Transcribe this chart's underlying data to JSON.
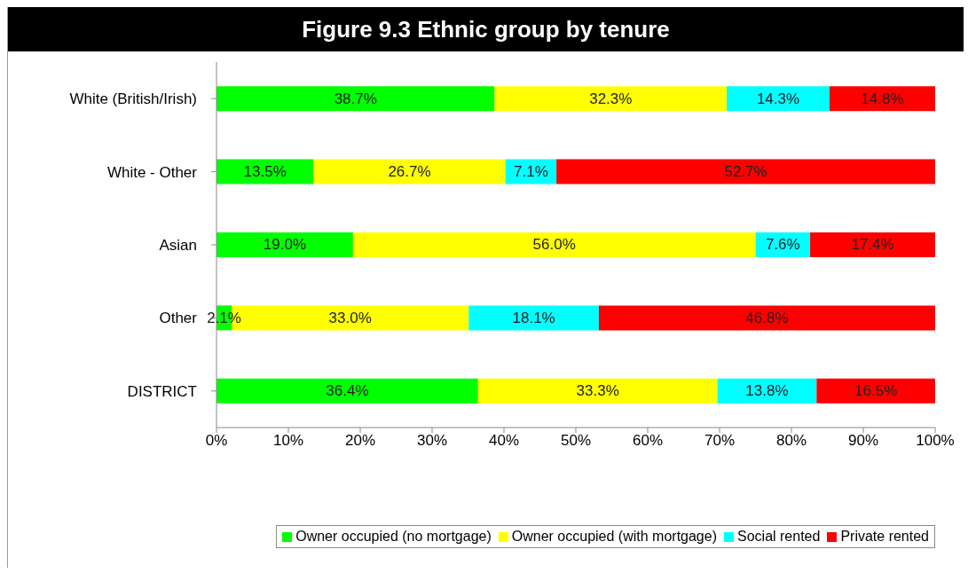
{
  "chart_data": {
    "type": "bar",
    "orientation": "horizontal",
    "stacked": true,
    "title": "Figure 9.3 Ethnic group by tenure",
    "categories": [
      "White (British/Irish)",
      "White - Other",
      "Asian",
      "Other",
      "DISTRICT"
    ],
    "series": [
      {
        "name": "Owner occupied (no mortgage)",
        "color": "#00ff00",
        "values": [
          38.7,
          13.5,
          19.0,
          2.1,
          36.4
        ],
        "value_labels": [
          "38.7%",
          "13.5%",
          "19.0%",
          "2.1%",
          "36.4%"
        ]
      },
      {
        "name": "Owner occupied (with mortgage)",
        "color": "#ffff00",
        "values": [
          32.3,
          26.7,
          56.0,
          33.0,
          33.3
        ],
        "value_labels": [
          "32.3%",
          "26.7%",
          "56.0%",
          "33.0%",
          "33.3%"
        ]
      },
      {
        "name": "Social rented",
        "color": "#00ffff",
        "values": [
          14.3,
          7.1,
          7.6,
          18.1,
          13.8
        ],
        "value_labels": [
          "14.3%",
          "7.1%",
          "7.6%",
          "18.1%",
          "13.8%"
        ]
      },
      {
        "name": "Private rented",
        "color": "#ff0000",
        "values": [
          14.8,
          52.7,
          17.4,
          46.8,
          16.5
        ],
        "value_labels": [
          "14.8%",
          "52.7%",
          "17.4%",
          "46.8%",
          "16.5%"
        ]
      }
    ],
    "xlim": [
      0,
      100
    ],
    "xticks": [
      {
        "value": 0,
        "label": "0%"
      },
      {
        "value": 10,
        "label": "10%"
      },
      {
        "value": 20,
        "label": "20%"
      },
      {
        "value": 30,
        "label": "30%"
      },
      {
        "value": 40,
        "label": "40%"
      },
      {
        "value": 50,
        "label": "50%"
      },
      {
        "value": 60,
        "label": "60%"
      },
      {
        "value": 70,
        "label": "70%"
      },
      {
        "value": 80,
        "label": "80%"
      },
      {
        "value": 90,
        "label": "90%"
      },
      {
        "value": 100,
        "label": "100%"
      }
    ],
    "legend": "bottom right"
  }
}
